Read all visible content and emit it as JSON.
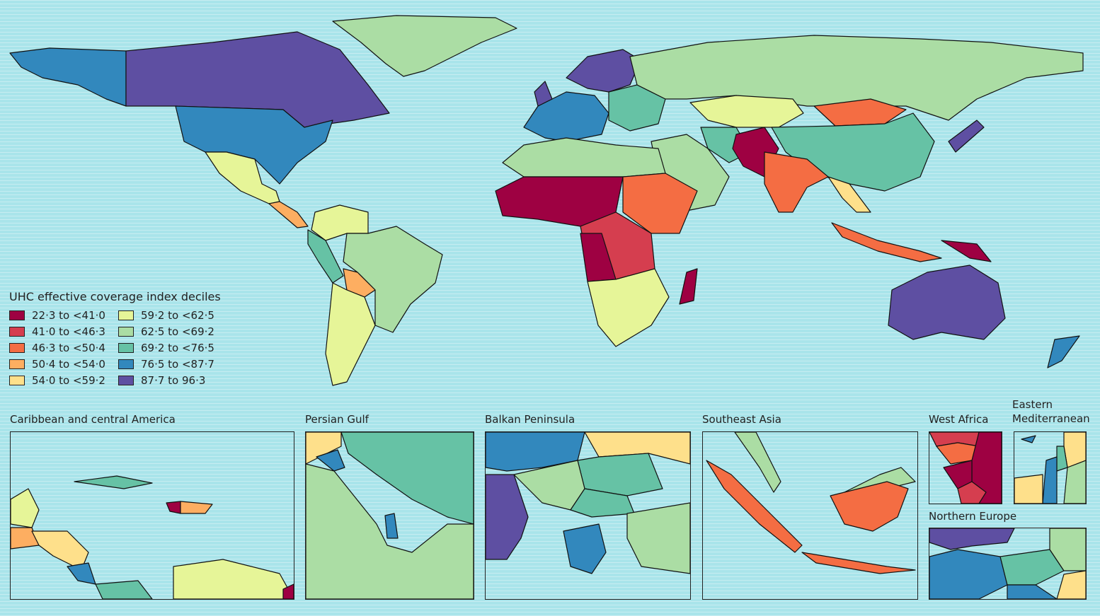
{
  "legend": {
    "title": "UHC effective coverage index deciles",
    "items": [
      {
        "label": "22·3 to <41·0",
        "color": "#9e0142"
      },
      {
        "label": "41·0 to <46·3",
        "color": "#d53e4f"
      },
      {
        "label": "46·3 to <50·4",
        "color": "#f46d43"
      },
      {
        "label": "50·4 to <54·0",
        "color": "#fdae61"
      },
      {
        "label": "54·0 to <59·2",
        "color": "#fee08b"
      },
      {
        "label": "59·2 to <62·5",
        "color": "#e6f598"
      },
      {
        "label": "62·5 to <69·2",
        "color": "#abdda4"
      },
      {
        "label": "69·2 to <76·5",
        "color": "#66c2a5"
      },
      {
        "label": "76·5 to <87·7",
        "color": "#3288bd"
      },
      {
        "label": "87·7 to 96·3",
        "color": "#5e4fa2"
      }
    ]
  },
  "insets": [
    {
      "title": "Caribbean and central America"
    },
    {
      "title": "Persian Gulf"
    },
    {
      "title": "Balkan Peninsula"
    },
    {
      "title": "Southeast Asia"
    },
    {
      "title": "West Africa"
    },
    {
      "title": "Eastern Mediterranean"
    },
    {
      "title": "Northern Europe"
    }
  ],
  "colors": {
    "ocean": "#a9e4ea",
    "no_data": "#ffffff"
  }
}
